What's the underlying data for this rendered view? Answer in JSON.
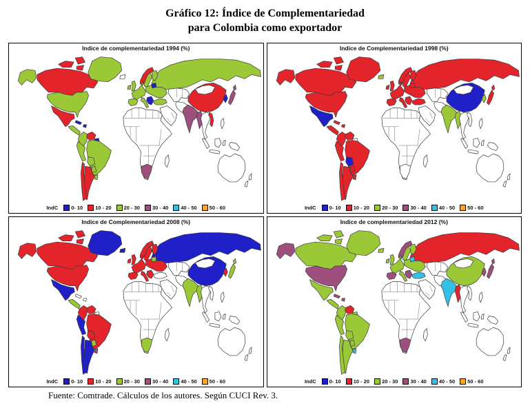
{
  "figure": {
    "title_line1": "Gráfico 12: Índice de Complementariedad",
    "title_line2": "para Colombia como exportador",
    "source": "Fuente: Comtrade. Cálculos de los autores. Según CUCI Rev. 3."
  },
  "legend": {
    "label": "IndC",
    "bins": [
      {
        "key": "0-10",
        "label": "0- 10",
        "color": "#2020c8"
      },
      {
        "key": "10-20",
        "label": "10 - 20",
        "color": "#e3242b"
      },
      {
        "key": "20-30",
        "label": "20 - 30",
        "color": "#9bc837"
      },
      {
        "key": "30-40",
        "label": "30 - 40",
        "color": "#9e4f7d"
      },
      {
        "key": "40-50",
        "label": "40 - 50",
        "color": "#35c1e6"
      },
      {
        "key": "50-60",
        "label": "50 - 60",
        "color": "#f9a72b"
      }
    ]
  },
  "panels": [
    {
      "id": "1994",
      "title": "Indice de complementariedad 1994 (%)",
      "regions": {
        "canada": "10-20",
        "alaska": "20-30",
        "greenland": "20-30",
        "usa": "20-30",
        "mexico": "10-20",
        "central_america": "20-30",
        "caribbean": "0-10",
        "colombia": "20-30",
        "venezuela": "10-20",
        "guyanas": "0-10",
        "peru": "20-30",
        "brazil": "20-30",
        "bolivia": "20-30",
        "paraguay": "20-30",
        "argentina": "10-20",
        "chile": "10-20",
        "uruguay": "20-30",
        "uk_ireland": "20-30",
        "norway": "10-20",
        "sweden_finland": "20-30",
        "baltics": "0-10",
        "west_europe": "20-30",
        "spain": "20-30",
        "italy": "20-30",
        "east_europe": "20-30",
        "greece": "0-10",
        "turkey": "20-30",
        "russia": "20-30",
        "south_africa": "30-40",
        "india": "30-40",
        "myanmar": "30-40",
        "china": "10-20",
        "vietnam": "10-20",
        "japan": "30-40",
        "korea": "0-10"
      }
    },
    {
      "id": "1998",
      "title": "Indice de Complementariedad 1998 (%)",
      "regions": {
        "canada": "10-20",
        "alaska": "10-20",
        "greenland": "10-20",
        "usa": "10-20",
        "mexico": "0-10",
        "central_america": "10-20",
        "caribbean": "10-20",
        "colombia": "10-20",
        "venezuela": "10-20",
        "peru": "10-20",
        "brazil": "10-20",
        "bolivia": "0-10",
        "paraguay": "10-20",
        "argentina": "10-20",
        "chile": "10-20",
        "uruguay": "10-20",
        "iceland": "20-30",
        "uk_ireland": "10-20",
        "norway": "10-20",
        "sweden_finland": "10-20",
        "baltics": "10-20",
        "west_europe": "10-20",
        "spain": "10-20",
        "italy": "10-20",
        "east_europe": "10-20",
        "greece": "10-20",
        "turkey": "10-20",
        "russia": "10-20",
        "india": "20-30",
        "myanmar": "20-30",
        "china": "0-10",
        "japan": "10-20",
        "korea": "20-30"
      }
    },
    {
      "id": "2008",
      "title": "Indice de Complementariedad 2008 (%)",
      "regions": {
        "canada": "10-20",
        "alaska": "10-20",
        "greenland": "0-10",
        "usa": "10-20",
        "mexico": "0-10",
        "central_america": "20-30",
        "colombia": "10-20",
        "venezuela": "10-20",
        "peru": "0-10",
        "brazil": "10-20",
        "bolivia": "10-20",
        "paraguay": "20-30",
        "argentina": "0-10",
        "chile": "0-10",
        "uruguay": "30-40",
        "iceland": "0-10",
        "uk_ireland": "10-20",
        "norway": "10-20",
        "sweden_finland": "10-20",
        "baltics": "20-30",
        "west_europe": "10-20",
        "spain": "10-20",
        "italy": "10-20",
        "east_europe": "10-20",
        "greece": "10-20",
        "russia": "0-10",
        "south_africa": "20-30",
        "india": "20-30",
        "myanmar": "20-30",
        "china": "0-10",
        "japan": "20-30",
        "korea": "10-20"
      }
    },
    {
      "id": "2012",
      "title": "Indice de complementariedad 2012 (%)",
      "regions": {
        "canada": "20-30",
        "alaska": "30-40",
        "greenland": "20-30",
        "usa": "30-40",
        "mexico": "20-30",
        "central_america": "20-30",
        "caribbean": "30-40",
        "colombia": "20-30",
        "venezuela": "10-20",
        "guyanas": "20-30",
        "peru": "20-30",
        "brazil": "20-30",
        "bolivia": "20-30",
        "paraguay": "20-30",
        "argentina": "20-30",
        "chile": "20-30",
        "uruguay": "40-50",
        "iceland": "20-30",
        "uk_ireland": "20-30",
        "norway": "30-40",
        "sweden_finland": "20-30",
        "baltics": "40-50",
        "west_europe": "20-30",
        "spain": "30-40",
        "italy": "20-30",
        "east_europe": "20-30",
        "greece": "30-40",
        "turkey": "40-50",
        "russia": "10-20",
        "south_africa": "30-40",
        "india": "40-50",
        "myanmar": "10-20",
        "china": "20-30",
        "japan": "30-40",
        "korea": "30-40"
      }
    }
  ]
}
